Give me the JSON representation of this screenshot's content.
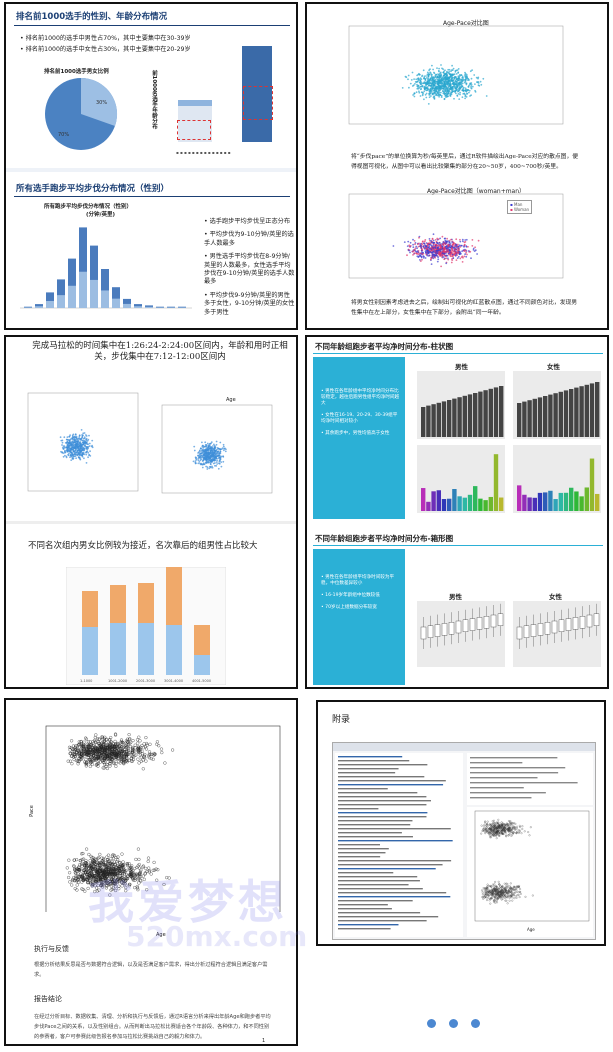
{
  "pane1": {
    "title": "排名前1000选手的性别、年龄分布情况",
    "bullets": [
      "排名前1000的选手中男性占70%，其中主要集中在30-39岁",
      "排名前1000的选手中女性占30%，其中主要集中在20-29岁"
    ],
    "pie_title": "排名前1000选手男女比例",
    "pie_labels": [
      "30%",
      "70%"
    ],
    "vertical_label": "前1000名选手年龄分布",
    "section2_title": "所有选手跑步平均步伐分布情况（性别）",
    "chart2_title": "所有跑步平均步伐分布情况（性别）",
    "chart2_subtitle": "(分钟/英里)",
    "bullets2": [
      "选手跑步平均步伐呈正态分布",
      "平均步伐为9-10分钟/英里的选手人数最多",
      "男性选手平均步伐在8-9分钟/英里的人数最多，女性选手平均步伐在9-10分钟/英里的选手人数最多",
      "平均步伐9-9分钟/英里的男性多于女性，9-10分钟/英里的女性多于男性"
    ],
    "bar_values": [
      1,
      3,
      12,
      22,
      38,
      62,
      48,
      30,
      16,
      7,
      3,
      2,
      1,
      1,
      1
    ]
  },
  "pane2": {
    "scatter1_title": "Age-Pace对比图",
    "text1": "将“步伐pace”的单位换算为秒/每英里后，通过R软件描绘出Age-Pace对应的散点图，便得视图可视化，从图中可以看出比较聚集的部分在20~50岁，400~700秒/英里。",
    "scatter2_title": "Age-Pace对比图（woman+man）",
    "legend": [
      "Man",
      "Woman"
    ],
    "text2": "将男女性别因素考虑进去之后，绘制出可视化的红蓝散点图，通过不同颜色对比，发现男性集中在左上部分，女性集中在下部分，会附出“同一年龄。"
  },
  "pane3": {
    "text1": "完成马拉松的时间集中在1:26:24-2:24:00区间内，年龄和用时正相关，步伐集中在7:12-12:00区间内",
    "scatter_right_title": "Age",
    "text2": "不同名次组内男女比例较为接近，名次靠后的组男性占比较大",
    "stack_values": [
      [
        48,
        36
      ],
      [
        52,
        38
      ],
      [
        52,
        40
      ],
      [
        50,
        58
      ],
      [
        20,
        30
      ]
    ],
    "stack_categories": [
      "1-1000",
      "1001-2000",
      "2001-3000",
      "3001-4000",
      "4001-5000"
    ]
  },
  "pane4": {
    "title1": "不同年龄组跑步者平均净时间分布-柱状图",
    "title2": "不同年龄组跑步者平均净时间分布-箱形图",
    "male": "男性",
    "female": "女性",
    "side1": [
      "男性在各年龄组中平均净时间分布比较稳定，越往后跑男性组平均净时间越大",
      "女性在16-19、20-29、30-39组平均净时间相对较小",
      "其余跑步中，男性均值高于女性"
    ],
    "side2": [
      "男性在各年龄组平均净时间较为平稳，中位数差异较小",
      "16-19岁年龄组中位数较低",
      "70岁以上组数据分布较宽"
    ]
  },
  "pane5": {
    "xlabel": "Age",
    "ylabel": "Pace",
    "sec1": "执行与反馈",
    "para1": "根据分析结果反思是否与数据符合逻辑，以及是否满足客户需求，得出分析过程符合逻辑且满足客户需求。",
    "sec2": "报告结论",
    "para2": "在经过分析目标、数据收集、清理、分析和执行与反馈后，通过R语言分析来得出年龄Age和跑步者平均步伐Pace之间的关系，以及性别组合。从而判断出马拉松比赛适合各个年龄段、各种体力，和不同性别的参赛者，客户可参赛此级告报名参加马拉松比赛挑战自己的毅力和体力。",
    "page": "1"
  },
  "pane6": {
    "title": "附录",
    "xlabel": "Age"
  },
  "watermarks": [
    "我爱梦想",
    "520mx.com"
  ]
}
